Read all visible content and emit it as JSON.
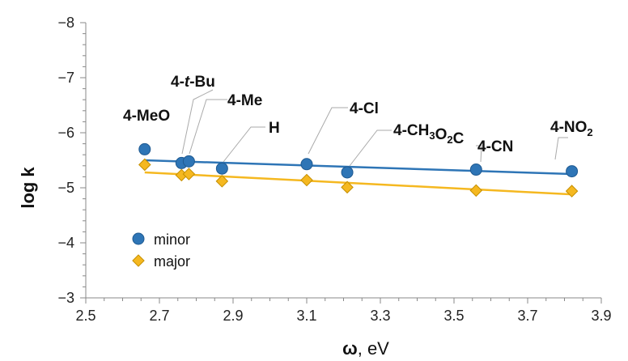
{
  "chart_data": {
    "type": "scatter",
    "xlabel": "ω",
    "xlabel_unit": ", eV",
    "ylabel": "log k",
    "xlim": [
      2.5,
      3.9
    ],
    "ylim": [
      -3,
      -8
    ],
    "y_axis_reversed": true,
    "x_ticks": [
      "2.5",
      "2.7",
      "2.9",
      "3.1",
      "3.3",
      "3.5",
      "3.7",
      "3.9"
    ],
    "y_ticks": [
      "−3",
      "−4",
      "−5",
      "−6",
      "−7",
      "−8"
    ],
    "legend_position": "bottom-left",
    "series": [
      {
        "name": "minor",
        "marker": "circle",
        "color": "#2e75b6",
        "x": [
          2.66,
          2.76,
          2.78,
          2.87,
          3.1,
          3.21,
          3.56,
          3.82
        ],
        "y": [
          -5.7,
          -5.45,
          -5.48,
          -5.35,
          -5.43,
          -5.28,
          -5.33,
          -5.3
        ],
        "trendline": [
          [
            2.66,
            -5.5
          ],
          [
            3.82,
            -5.25
          ]
        ]
      },
      {
        "name": "major",
        "marker": "diamond",
        "color": "#f5b820",
        "x": [
          2.66,
          2.76,
          2.78,
          2.87,
          3.1,
          3.21,
          3.56,
          3.82
        ],
        "y": [
          -5.42,
          -5.23,
          -5.25,
          -5.12,
          -5.14,
          -5.01,
          -4.95,
          -4.94
        ],
        "trendline": [
          [
            2.66,
            -5.28
          ],
          [
            3.82,
            -4.88
          ]
        ]
      }
    ],
    "point_labels": [
      {
        "text": "4-MeO",
        "x": 2.66
      },
      {
        "text": "4-t-Bu",
        "x": 2.76
      },
      {
        "text": "4-Me",
        "x": 2.78
      },
      {
        "text": "H",
        "x": 2.87
      },
      {
        "text": "4-Cl",
        "x": 3.1
      },
      {
        "text": "4-CH3O2C",
        "x": 3.21
      },
      {
        "text": "4-CN",
        "x": 3.56
      },
      {
        "text": "4-NO2",
        "x": 3.82
      }
    ]
  }
}
